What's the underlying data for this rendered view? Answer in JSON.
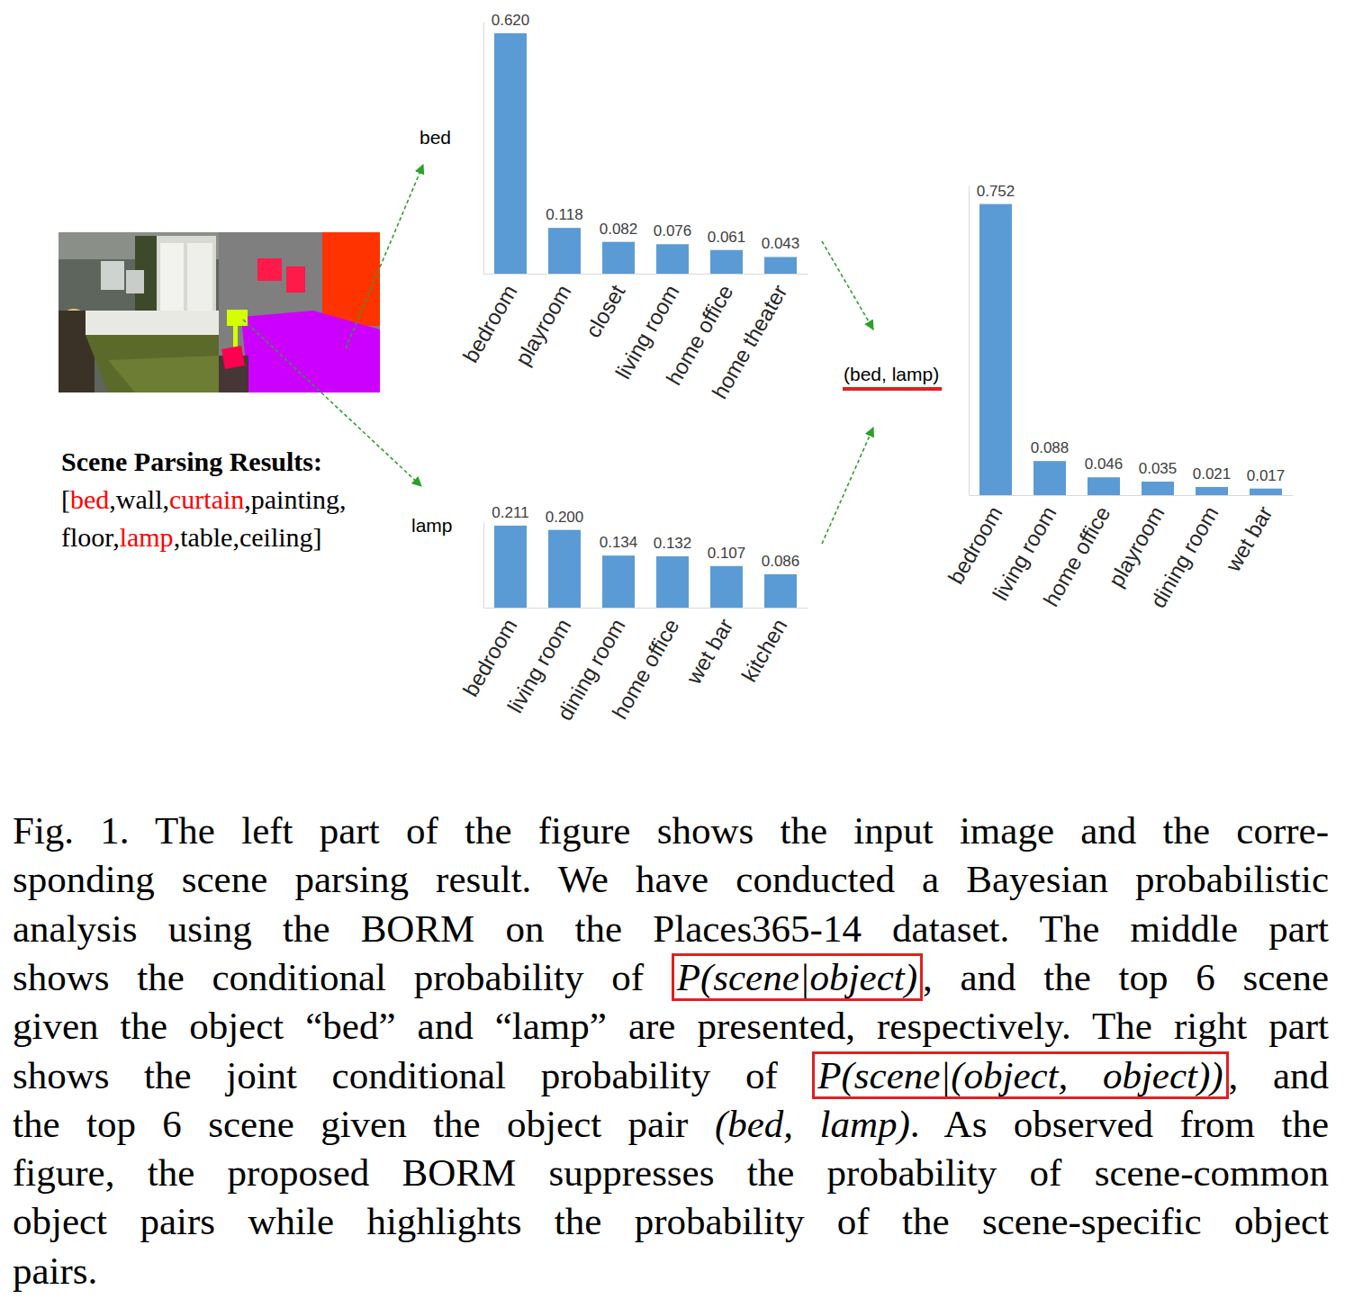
{
  "chart_data": [
    {
      "type": "bar",
      "title": "bed",
      "categories": [
        "bedroom",
        "playroom",
        "closet",
        "living room",
        "home office",
        "home theater"
      ],
      "values": [
        0.62,
        0.118,
        0.082,
        0.076,
        0.061,
        0.043
      ],
      "value_labels": [
        "0.620",
        "0.118",
        "0.082",
        "0.076",
        "0.061",
        "0.043"
      ],
      "color": "#5b9bd5",
      "ylim": [
        0,
        0.65
      ],
      "data_labels": true,
      "tick_labels": "x"
    },
    {
      "type": "bar",
      "title": "lamp",
      "categories": [
        "bedroom",
        "living room",
        "dining room",
        "home office",
        "wet bar",
        "kitchen"
      ],
      "values": [
        0.211,
        0.2,
        0.134,
        0.132,
        0.107,
        0.086
      ],
      "value_labels": [
        "0.211",
        "0.200",
        "0.134",
        "0.132",
        "0.107",
        "0.086"
      ],
      "color": "#5b9bd5",
      "ylim": [
        0,
        0.22
      ],
      "data_labels": true,
      "tick_labels": "x"
    },
    {
      "type": "bar",
      "title": "(bed, lamp)",
      "categories": [
        "bedroom",
        "living room",
        "home office",
        "playroom",
        "dining room",
        "wet bar"
      ],
      "values": [
        0.752,
        0.088,
        0.046,
        0.035,
        0.021,
        0.017
      ],
      "value_labels": [
        "0.752",
        "0.088",
        "0.046",
        "0.035",
        "0.021",
        "0.017"
      ],
      "color": "#5b9bd5",
      "ylim": [
        0,
        0.8
      ],
      "data_labels": true,
      "tick_labels": "x"
    }
  ],
  "parsing": {
    "title": "Scene Parsing Results:",
    "open": "[",
    "close": "]",
    "separator": ",",
    "lines": [
      [
        "bed",
        "wall",
        "curtain",
        "painting"
      ],
      [
        "floor",
        "lamp",
        "table",
        "ceiling"
      ]
    ],
    "highlighted": [
      "bed",
      "curtain",
      "lamp"
    ]
  },
  "caption": {
    "lines": [
      [
        {
          "text": "Fig. 1.   The left part of the figure shows the input image and the corre-"
        }
      ],
      [
        {
          "text": "sponding scene parsing result. We have conducted a Bayesian probabilistic"
        }
      ],
      [
        {
          "text": "analysis using the BORM on the Places365-14 dataset. The middle part"
        }
      ],
      [
        {
          "text": "shows the conditional probability of "
        },
        {
          "math": "P(scene|object)",
          "boxed": true
        },
        {
          "text": ", and the top 6 scene"
        }
      ],
      [
        {
          "text": "given the object “bed” and “lamp” are presented, respectively. The right part"
        }
      ],
      [
        {
          "text": "shows the joint conditional probability of "
        },
        {
          "math": "P(scene|(object, object))",
          "boxed": true
        },
        {
          "text": ", and"
        }
      ],
      [
        {
          "text": "the top 6 scene given the object pair "
        },
        {
          "math": "(bed, lamp)"
        },
        {
          "text": ". As observed from the"
        }
      ],
      [
        {
          "text": "figure, the proposed BORM suppresses the probability of scene-common"
        }
      ],
      [
        {
          "text": "object pairs while highlights the probability of the scene-specific object"
        }
      ],
      [
        {
          "text": "pairs."
        }
      ]
    ]
  }
}
